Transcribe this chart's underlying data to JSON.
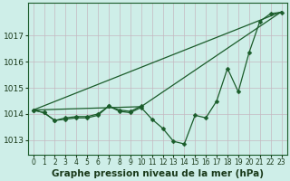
{
  "xlabel": "Graphe pression niveau de la mer (hPa)",
  "bg_color": "#ceeee8",
  "grid_color": "#c4b8c0",
  "line_color": "#1a5c2a",
  "x": [
    0,
    1,
    2,
    3,
    4,
    5,
    6,
    7,
    8,
    9,
    10,
    11,
    12,
    13,
    14,
    15,
    16,
    17,
    18,
    19,
    20,
    21,
    22,
    23
  ],
  "series_main": [
    1014.15,
    1014.05,
    1013.75,
    1013.8,
    1013.85,
    1013.85,
    1013.95,
    1014.3,
    1014.1,
    1014.05,
    1014.25,
    1013.8,
    1013.45,
    1012.95,
    1012.85,
    1013.95,
    1013.85,
    1014.5,
    1015.75,
    1014.85,
    1016.35,
    1017.55,
    1017.85,
    1017.9
  ],
  "series_short": [
    1014.15,
    1014.05,
    1013.75,
    1013.85,
    1013.9,
    1013.9,
    1014.0,
    1014.3,
    1014.15,
    1014.1,
    1014.3
  ],
  "line1_x": [
    0,
    23
  ],
  "line1_y": [
    1014.15,
    1017.92
  ],
  "line2_x": [
    0,
    10,
    23
  ],
  "line2_y": [
    1014.15,
    1014.28,
    1017.92
  ],
  "ylim": [
    1012.45,
    1018.25
  ],
  "xlim": [
    -0.5,
    23.5
  ],
  "yticks": [
    1013,
    1014,
    1015,
    1016,
    1017
  ],
  "xticks": [
    0,
    1,
    2,
    3,
    4,
    5,
    6,
    7,
    8,
    9,
    10,
    11,
    12,
    13,
    14,
    15,
    16,
    17,
    18,
    19,
    20,
    21,
    22,
    23
  ],
  "xlabel_fontsize": 7.5,
  "ytick_fontsize": 6.5,
  "xtick_fontsize": 5.5,
  "marker_size": 2.5,
  "lw": 0.9
}
